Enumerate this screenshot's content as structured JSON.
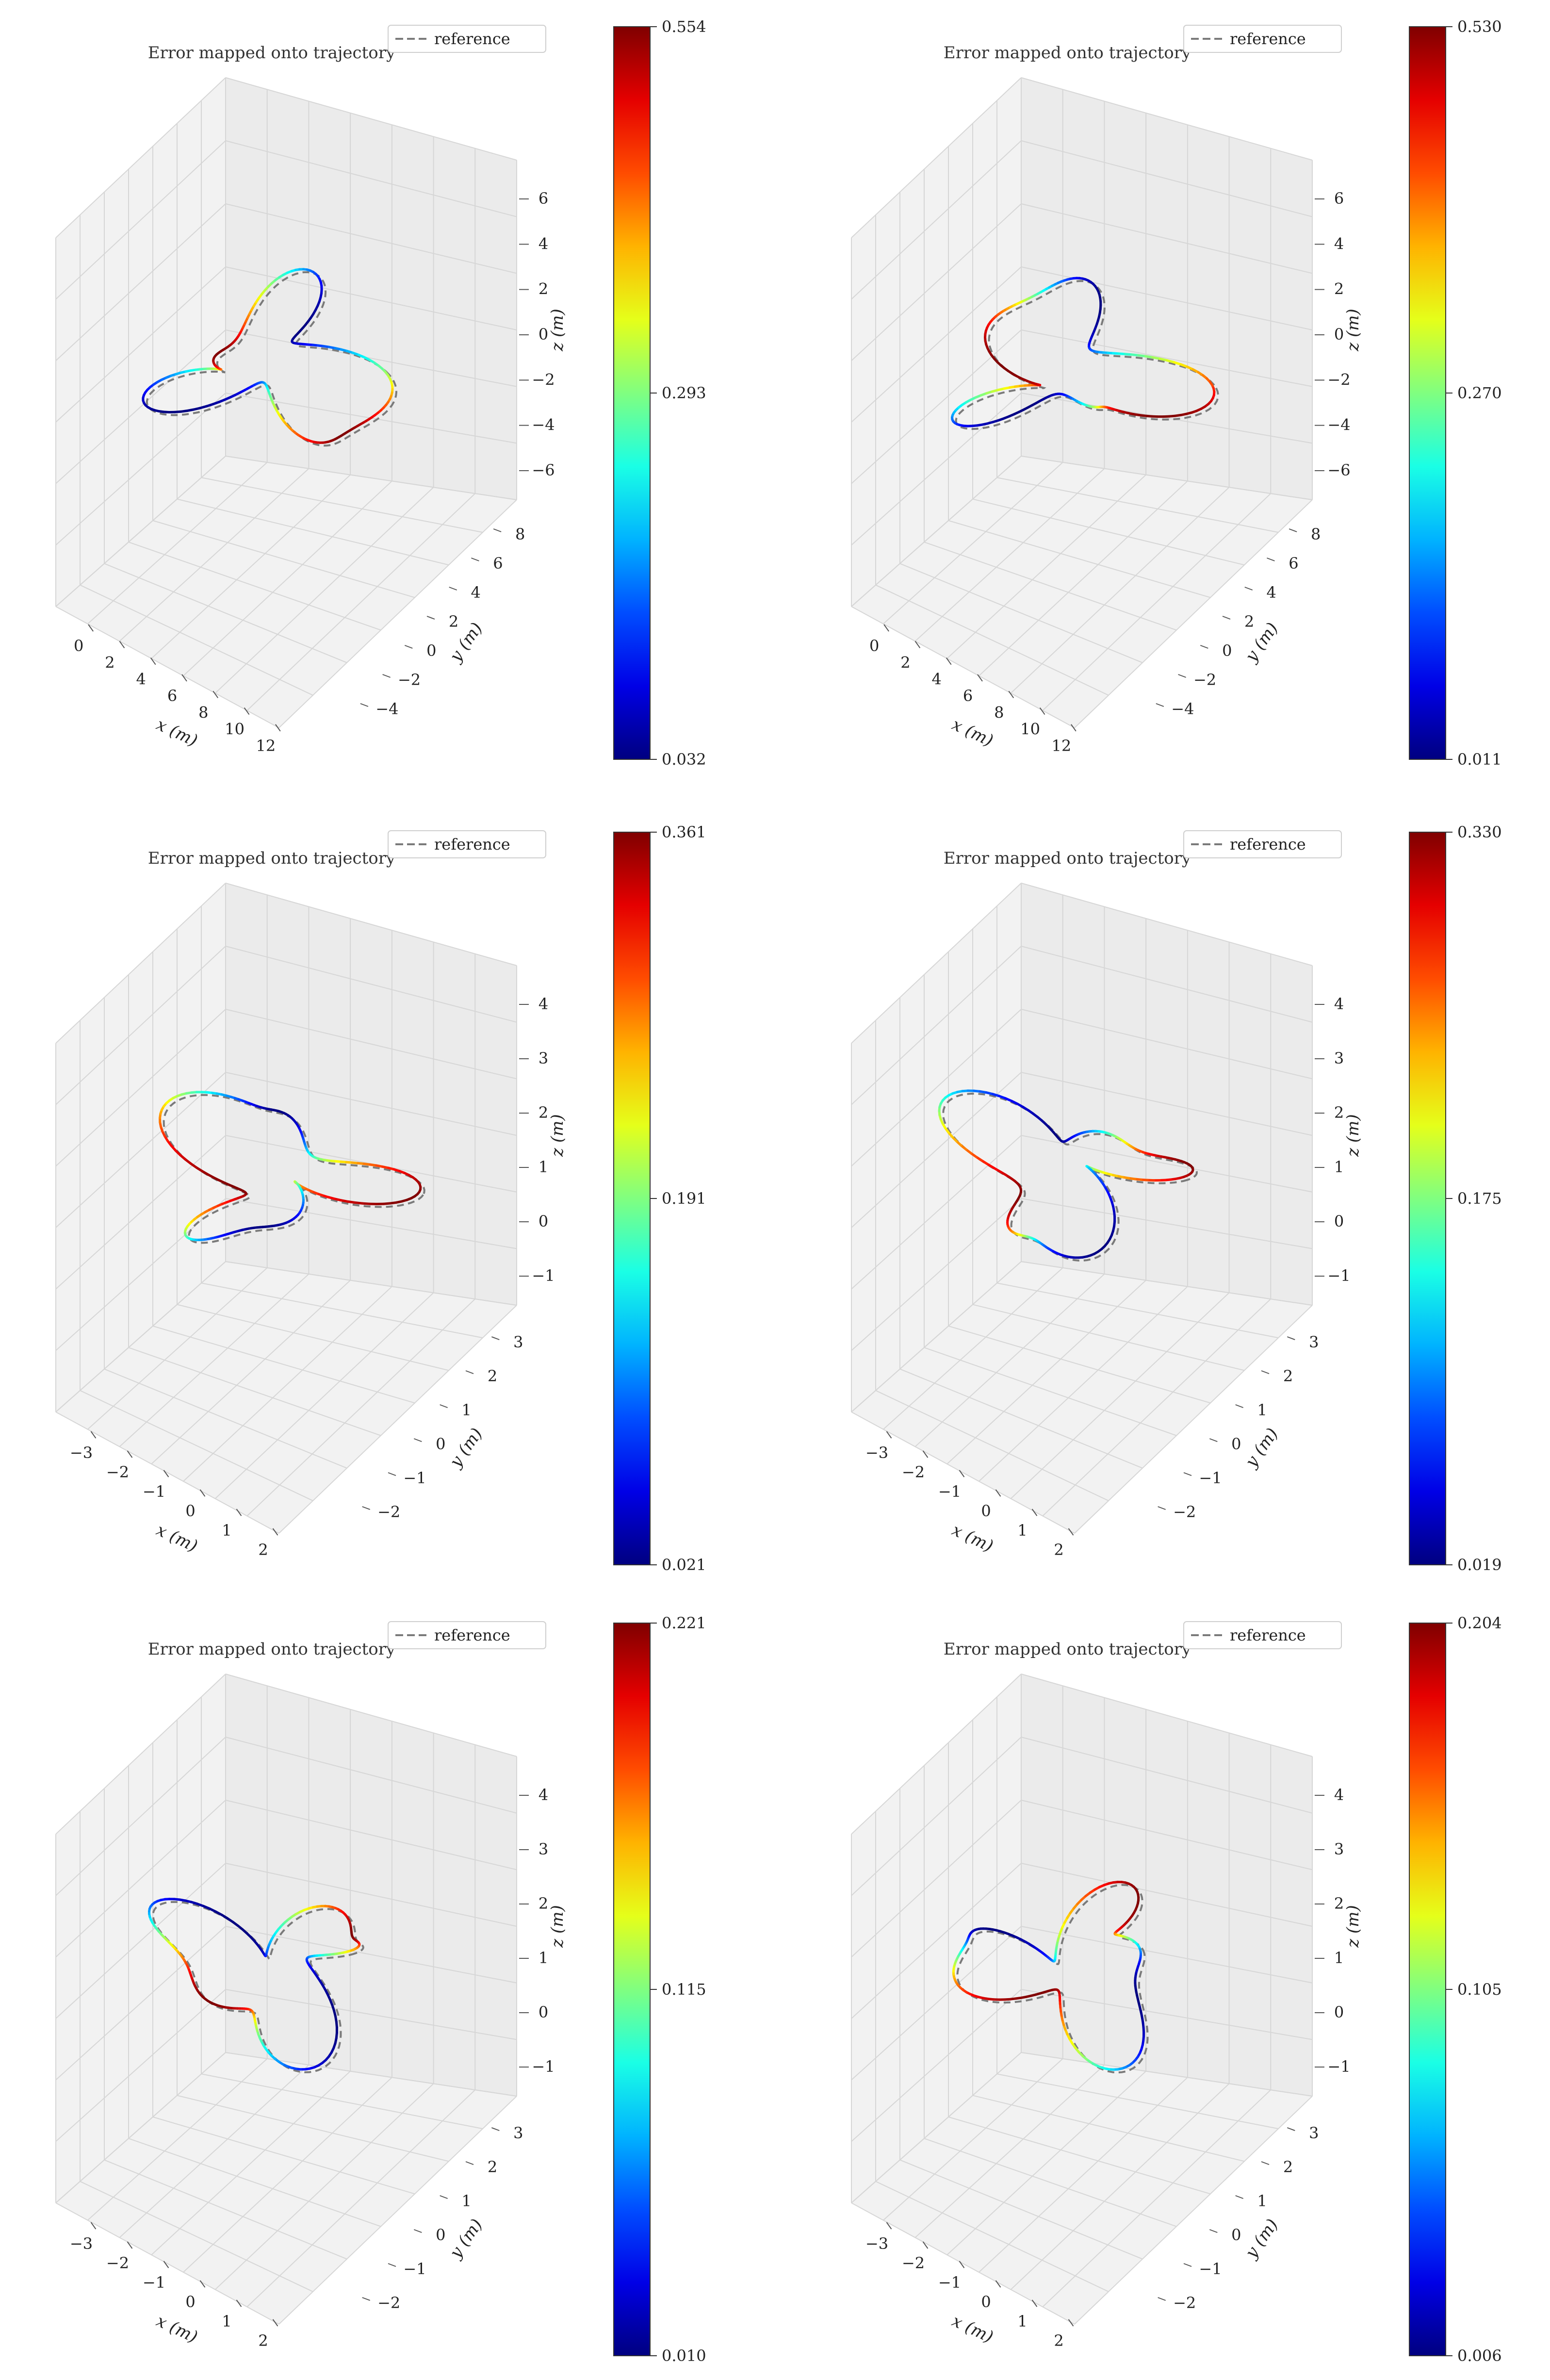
{
  "chart_data": [
    {
      "type": "trajectory-3d",
      "title": "Error mapped onto trajectory",
      "legend": [
        "reference"
      ],
      "xlabel": "x (m)",
      "ylabel": "y (m)",
      "zlabel": "z (m)",
      "xticks": [
        "0",
        "2",
        "4",
        "6",
        "8",
        "10",
        "12"
      ],
      "yticks": [
        "−4",
        "−2",
        "0",
        "2",
        "4",
        "6",
        "8"
      ],
      "zticks": [
        "6",
        "4",
        "2",
        "0",
        "−2",
        "−4",
        "−6"
      ],
      "colorbar": {
        "min": 0.032,
        "mid": 0.293,
        "max": 0.554,
        "labels": [
          "0.554",
          "0.293",
          "0.032"
        ]
      }
    },
    {
      "type": "trajectory-3d",
      "title": "Error mapped onto trajectory",
      "legend": [
        "reference"
      ],
      "xlabel": "x (m)",
      "ylabel": "y (m)",
      "zlabel": "z (m)",
      "xticks": [
        "0",
        "2",
        "4",
        "6",
        "8",
        "10",
        "12"
      ],
      "yticks": [
        "−4",
        "−2",
        "0",
        "2",
        "4",
        "6",
        "8"
      ],
      "zticks": [
        "6",
        "4",
        "2",
        "0",
        "−2",
        "−4",
        "−6"
      ],
      "colorbar": {
        "min": 0.011,
        "mid": 0.27,
        "max": 0.53,
        "labels": [
          "0.530",
          "0.270",
          "0.011"
        ]
      }
    },
    {
      "type": "trajectory-3d",
      "title": "Error mapped onto trajectory",
      "legend": [
        "reference"
      ],
      "xlabel": "x (m)",
      "ylabel": "y (m)",
      "zlabel": "z (m)",
      "xticks": [
        "−3",
        "−2",
        "−1",
        "0",
        "1",
        "2"
      ],
      "yticks": [
        "−2",
        "−1",
        "0",
        "1",
        "2",
        "3"
      ],
      "zticks": [
        "4",
        "3",
        "2",
        "1",
        "0",
        "−1"
      ],
      "colorbar": {
        "min": 0.021,
        "mid": 0.191,
        "max": 0.361,
        "labels": [
          "0.361",
          "0.191",
          "0.021"
        ]
      }
    },
    {
      "type": "trajectory-3d",
      "title": "Error mapped onto trajectory",
      "legend": [
        "reference"
      ],
      "xlabel": "x (m)",
      "ylabel": "y (m)",
      "zlabel": "z (m)",
      "xticks": [
        "−3",
        "−2",
        "−1",
        "0",
        "1",
        "2"
      ],
      "yticks": [
        "−2",
        "−1",
        "0",
        "1",
        "2",
        "3"
      ],
      "zticks": [
        "4",
        "3",
        "2",
        "1",
        "0",
        "−1"
      ],
      "colorbar": {
        "min": 0.019,
        "mid": 0.175,
        "max": 0.33,
        "labels": [
          "0.330",
          "0.175",
          "0.019"
        ]
      }
    },
    {
      "type": "trajectory-3d",
      "title": "Error mapped onto trajectory",
      "legend": [
        "reference"
      ],
      "xlabel": "x (m)",
      "ylabel": "y (m)",
      "zlabel": "z (m)",
      "xticks": [
        "−3",
        "−2",
        "−1",
        "0",
        "1",
        "2"
      ],
      "yticks": [
        "−2",
        "−1",
        "0",
        "1",
        "2",
        "3"
      ],
      "zticks": [
        "4",
        "3",
        "2",
        "1",
        "0",
        "−1"
      ],
      "colorbar": {
        "min": 0.01,
        "mid": 0.115,
        "max": 0.221,
        "labels": [
          "0.221",
          "0.115",
          "0.010"
        ]
      }
    },
    {
      "type": "trajectory-3d",
      "title": "Error mapped onto trajectory",
      "legend": [
        "reference"
      ],
      "xlabel": "x (m)",
      "ylabel": "y (m)",
      "zlabel": "z (m)",
      "xticks": [
        "−3",
        "−2",
        "−1",
        "0",
        "1",
        "2"
      ],
      "yticks": [
        "−2",
        "−1",
        "0",
        "1",
        "2",
        "3"
      ],
      "zticks": [
        "4",
        "3",
        "2",
        "1",
        "0",
        "−1"
      ],
      "colorbar": {
        "min": 0.006,
        "mid": 0.105,
        "max": 0.204,
        "labels": [
          "0.204",
          "0.105",
          "0.006"
        ]
      }
    }
  ],
  "colors": {
    "pane": "#f2f2f2",
    "pane_side": "#ebebeb",
    "grid": "#d6d6d6",
    "reference": "#7a7a7a"
  }
}
